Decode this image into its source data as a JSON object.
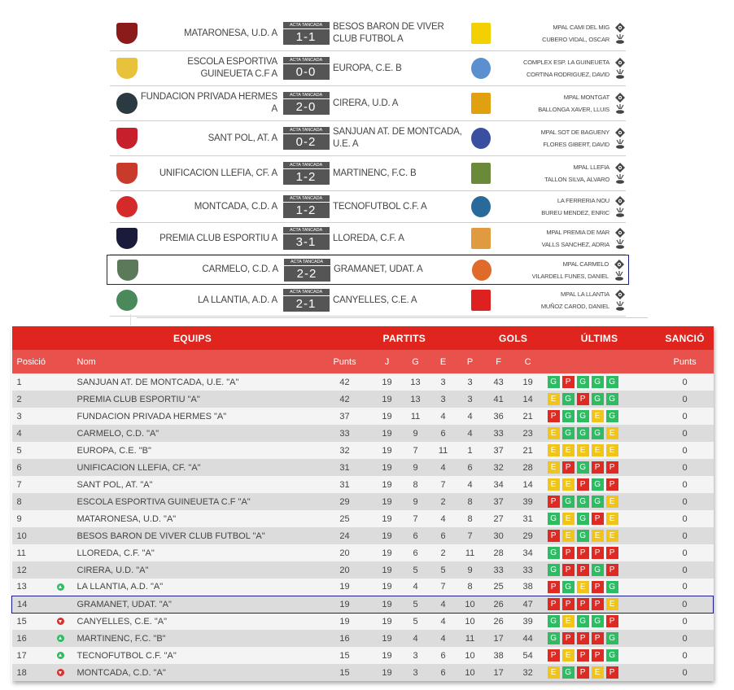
{
  "matches": [
    {
      "home": "MATARONESA, U.D. A",
      "score": "1-1",
      "status": "ACTA TANCADA",
      "away": "BESOS BARON DE VIVER CLUB FUTBOL A",
      "venue": "MPAL CAMI DEL MIG",
      "referee": "CUBERO VIDAL, OSCAR",
      "home_crest": "#8b1a1a",
      "away_crest": "#f3d000"
    },
    {
      "home": "ESCOLA ESPORTIVA GUINEUETA C.F A",
      "score": "0-0",
      "status": "ACTA TANCADA",
      "away": "EUROPA, C.E. B",
      "venue": "COMPLEX ESP. LA GUINEUETA",
      "referee": "CORTINA RODRIGUEZ, DAVID",
      "home_crest": "#e8c23a",
      "away_crest": "#5b8fd0"
    },
    {
      "home": "FUNDACION PRIVADA HERMES A",
      "score": "2-0",
      "status": "ACTA TANCADA",
      "away": "CIRERA, U.D. A",
      "venue": "MPAL MONTGAT",
      "referee": "BALLONGA XAVER, LLUIS",
      "home_crest": "#2b3a40",
      "away_crest": "#e0a010"
    },
    {
      "home": "SANT POL, AT. A",
      "score": "0-2",
      "status": "ACTA TANCADA",
      "away": "SANJUAN AT. DE MONTCADA, U.E. A",
      "venue": "MPAL SOT DE BAGUENY",
      "referee": "FLORES GIBERT, DAVID",
      "home_crest": "#c8202a",
      "away_crest": "#3a4fa0"
    },
    {
      "home": "UNIFICACION LLEFIA, CF. A",
      "score": "1-2",
      "status": "ACTA TANCADA",
      "away": "MARTINENC, F.C. B",
      "venue": "MPAL LLEFIA",
      "referee": "TALLON SILVA, ALVARO",
      "home_crest": "#c83b2a",
      "away_crest": "#6a8a3a"
    },
    {
      "home": "MONTCADA, C.D. A",
      "score": "1-2",
      "status": "ACTA TANCADA",
      "away": "TECNOFUTBOL C.F. A",
      "venue": "LA FERRERIA NOU",
      "referee": "BUREU MENDEZ, ENRIC",
      "home_crest": "#d42a2a",
      "away_crest": "#2a6a9a"
    },
    {
      "home": "PREMIA CLUB ESPORTIU A",
      "score": "3-1",
      "status": "ACTA TANCADA",
      "away": "LLOREDA, C.F. A",
      "venue": "MPAL PREMIA DE MAR",
      "referee": "VALLS SANCHEZ, ADRIA",
      "home_crest": "#1a1a3a",
      "away_crest": "#e09a40"
    },
    {
      "home": "CARMELO, C.D. A",
      "score": "2-2",
      "status": "ACTA TANCADA",
      "away": "GRAMANET, UDAT. A",
      "venue": "MPAL CARMELO",
      "referee": "VILARDELL FUNES, DANIEL",
      "home_crest": "#5a7a5a",
      "away_crest": "#e06a2a"
    },
    {
      "home": "LA LLANTIA, A.D. A",
      "score": "2-1",
      "status": "ACTA TANCADA",
      "away": "CANYELLES, C.E. A",
      "venue": "MPAL LA LLANTIA",
      "referee": "MUÑOZ CAROD, DANIEL",
      "home_crest": "#4a8a5a",
      "away_crest": "#dd2020"
    }
  ],
  "standings": {
    "groups": {
      "equips": "EQUIPS",
      "partits": "PARTITS",
      "gols": "GOLS",
      "ultims": "ÚLTIMS",
      "sancio": "SANCIÓ"
    },
    "columns": {
      "pos": "Posició",
      "nom": "Nom",
      "punts": "Punts",
      "j": "J",
      "g": "G",
      "e": "E",
      "p": "P",
      "f": "F",
      "c": "C",
      "sancio_punts": "Punts"
    },
    "colors": {
      "header": "#e0251f",
      "subheader": "#e9514d",
      "win": "#2ebc63",
      "loss": "#de2a22",
      "draw": "#f0c419",
      "highlight": "#1a1f8c"
    },
    "rows": [
      {
        "pos": "1",
        "trend": "",
        "name": "SANJUAN AT. DE MONTCADA, U.E. \"A\"",
        "pts": "42",
        "j": "19",
        "g": "13",
        "e": "3",
        "p": "3",
        "f": "43",
        "c": "19",
        "last": [
          "G",
          "P",
          "G",
          "G",
          "G"
        ],
        "sancio": "0"
      },
      {
        "pos": "2",
        "trend": "",
        "name": "PREMIA CLUB ESPORTIU \"A\"",
        "pts": "42",
        "j": "19",
        "g": "13",
        "e": "3",
        "p": "3",
        "f": "41",
        "c": "14",
        "last": [
          "E",
          "G",
          "P",
          "G",
          "G"
        ],
        "sancio": "0"
      },
      {
        "pos": "3",
        "trend": "",
        "name": "FUNDACION PRIVADA HERMES \"A\"",
        "pts": "37",
        "j": "19",
        "g": "11",
        "e": "4",
        "p": "4",
        "f": "36",
        "c": "21",
        "last": [
          "P",
          "G",
          "G",
          "E",
          "G"
        ],
        "sancio": "0"
      },
      {
        "pos": "4",
        "trend": "",
        "name": "CARMELO, C.D. \"A\"",
        "pts": "33",
        "j": "19",
        "g": "9",
        "e": "6",
        "p": "4",
        "f": "33",
        "c": "23",
        "last": [
          "E",
          "G",
          "G",
          "G",
          "E"
        ],
        "sancio": "0"
      },
      {
        "pos": "5",
        "trend": "",
        "name": "EUROPA, C.E. \"B\"",
        "pts": "32",
        "j": "19",
        "g": "7",
        "e": "11",
        "p": "1",
        "f": "37",
        "c": "21",
        "last": [
          "E",
          "E",
          "E",
          "E",
          "E"
        ],
        "sancio": "0"
      },
      {
        "pos": "6",
        "trend": "",
        "name": "UNIFICACION LLEFIA, CF. \"A\"",
        "pts": "31",
        "j": "19",
        "g": "9",
        "e": "4",
        "p": "6",
        "f": "32",
        "c": "28",
        "last": [
          "E",
          "P",
          "G",
          "P",
          "P"
        ],
        "sancio": "0"
      },
      {
        "pos": "7",
        "trend": "",
        "name": "SANT POL, AT. \"A\"",
        "pts": "31",
        "j": "19",
        "g": "8",
        "e": "7",
        "p": "4",
        "f": "34",
        "c": "14",
        "last": [
          "E",
          "E",
          "P",
          "G",
          "P"
        ],
        "sancio": "0"
      },
      {
        "pos": "8",
        "trend": "",
        "name": "ESCOLA ESPORTIVA GUINEUETA C.F \"A\"",
        "pts": "29",
        "j": "19",
        "g": "9",
        "e": "2",
        "p": "8",
        "f": "37",
        "c": "39",
        "last": [
          "P",
          "G",
          "G",
          "G",
          "E"
        ],
        "sancio": "0"
      },
      {
        "pos": "9",
        "trend": "",
        "name": "MATARONESA, U.D. \"A\"",
        "pts": "25",
        "j": "19",
        "g": "7",
        "e": "4",
        "p": "8",
        "f": "27",
        "c": "31",
        "last": [
          "G",
          "E",
          "G",
          "P",
          "E"
        ],
        "sancio": "0"
      },
      {
        "pos": "10",
        "trend": "",
        "name": "BESOS BARON DE VIVER CLUB FUTBOL \"A\"",
        "pts": "24",
        "j": "19",
        "g": "6",
        "e": "6",
        "p": "7",
        "f": "30",
        "c": "29",
        "last": [
          "P",
          "E",
          "G",
          "E",
          "E"
        ],
        "sancio": "0"
      },
      {
        "pos": "11",
        "trend": "",
        "name": "LLOREDA, C.F. \"A\"",
        "pts": "20",
        "j": "19",
        "g": "6",
        "e": "2",
        "p": "11",
        "f": "28",
        "c": "34",
        "last": [
          "G",
          "P",
          "P",
          "P",
          "P"
        ],
        "sancio": "0"
      },
      {
        "pos": "12",
        "trend": "",
        "name": "CIRERA, U.D. \"A\"",
        "pts": "20",
        "j": "19",
        "g": "5",
        "e": "5",
        "p": "9",
        "f": "33",
        "c": "33",
        "last": [
          "G",
          "P",
          "P",
          "G",
          "P"
        ],
        "sancio": "0"
      },
      {
        "pos": "13",
        "trend": "up",
        "name": "LA LLANTIA, A.D. \"A\"",
        "pts": "19",
        "j": "19",
        "g": "4",
        "e": "7",
        "p": "8",
        "f": "25",
        "c": "38",
        "last": [
          "P",
          "G",
          "E",
          "P",
          "G"
        ],
        "sancio": "0"
      },
      {
        "pos": "14",
        "trend": "",
        "name": "GRAMANET, UDAT. \"A\"",
        "pts": "19",
        "j": "19",
        "g": "5",
        "e": "4",
        "p": "10",
        "f": "26",
        "c": "47",
        "last": [
          "P",
          "P",
          "P",
          "P",
          "E"
        ],
        "sancio": "0",
        "highlight": true
      },
      {
        "pos": "15",
        "trend": "down",
        "name": "CANYELLES, C.E. \"A\"",
        "pts": "19",
        "j": "19",
        "g": "5",
        "e": "4",
        "p": "10",
        "f": "26",
        "c": "39",
        "last": [
          "G",
          "E",
          "G",
          "G",
          "P"
        ],
        "sancio": "0"
      },
      {
        "pos": "16",
        "trend": "up",
        "name": "MARTINENC, F.C. \"B\"",
        "pts": "16",
        "j": "19",
        "g": "4",
        "e": "4",
        "p": "11",
        "f": "17",
        "c": "44",
        "last": [
          "G",
          "P",
          "P",
          "P",
          "G"
        ],
        "sancio": "0"
      },
      {
        "pos": "17",
        "trend": "up",
        "name": "TECNOFUTBOL C.F. \"A\"",
        "pts": "15",
        "j": "19",
        "g": "3",
        "e": "6",
        "p": "10",
        "f": "38",
        "c": "54",
        "last": [
          "P",
          "E",
          "P",
          "P",
          "G"
        ],
        "sancio": "0"
      },
      {
        "pos": "18",
        "trend": "down",
        "name": "MONTCADA, C.D. \"A\"",
        "pts": "15",
        "j": "19",
        "g": "3",
        "e": "6",
        "p": "10",
        "f": "17",
        "c": "32",
        "last": [
          "E",
          "G",
          "P",
          "E",
          "P"
        ],
        "sancio": "0"
      }
    ]
  }
}
